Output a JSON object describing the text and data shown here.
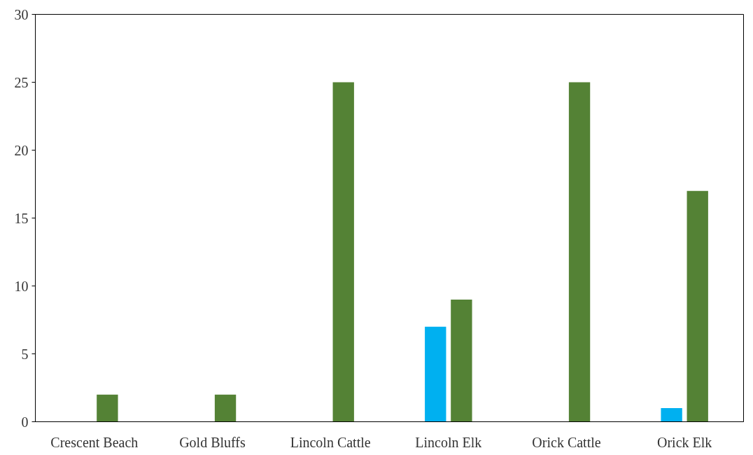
{
  "chart_data": {
    "type": "bar",
    "categories": [
      "Crescent Beach",
      "Gold Bluffs",
      "Lincoln Cattle",
      "Lincoln Elk",
      "Orick Cattle",
      "Orick Elk"
    ],
    "series": [
      {
        "color": "#00b0f0",
        "values": [
          null,
          null,
          null,
          7,
          null,
          1
        ]
      },
      {
        "color": "#548235",
        "values": [
          2,
          2,
          25,
          9,
          25,
          17
        ]
      }
    ],
    "ylim": [
      0,
      30
    ],
    "yticks": [
      0,
      5,
      10,
      15,
      20,
      25,
      30
    ],
    "grid": false
  }
}
